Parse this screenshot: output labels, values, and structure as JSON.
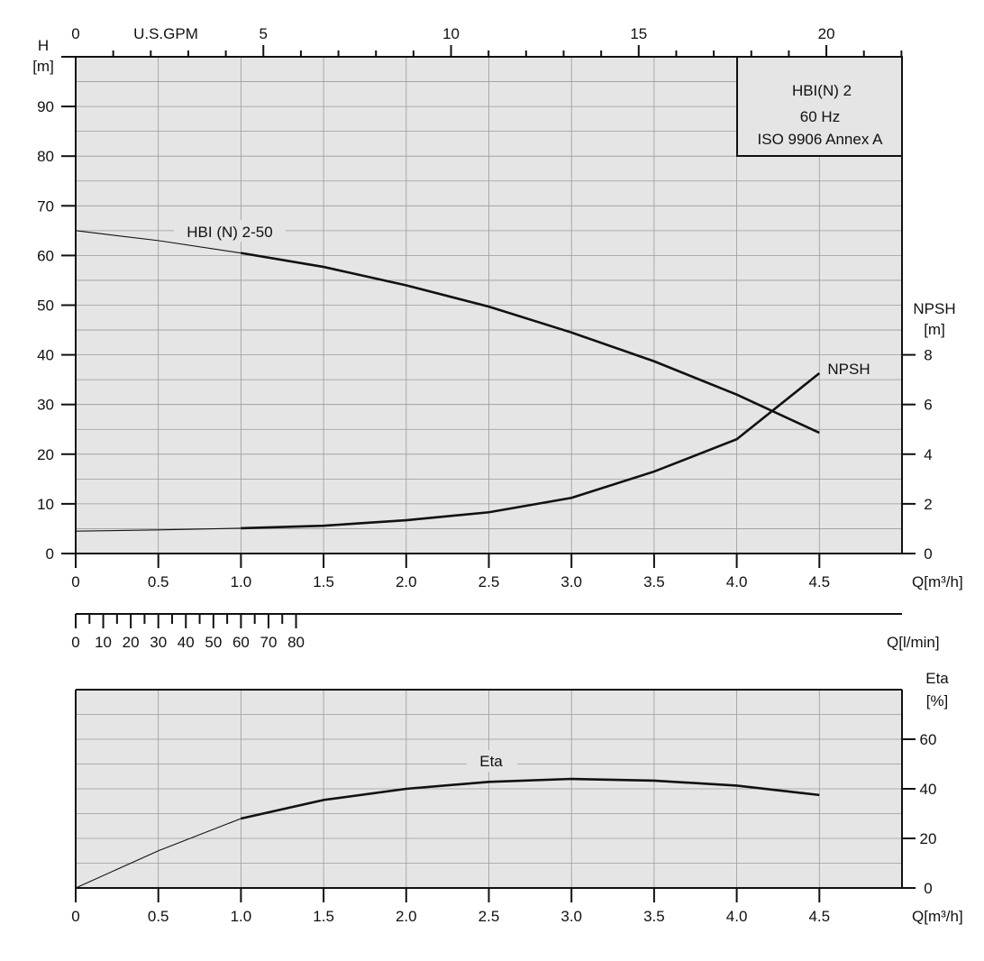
{
  "chart_data": [
    {
      "type": "line",
      "title": "HBI(N) 2",
      "subtitle": [
        "60 Hz",
        "ISO 9906 Annex A"
      ],
      "xlabel": "Q[m³/h]",
      "ylabel": "H [m]",
      "y2label": "NPSH [m]",
      "top_axis_label": "U.S.GPM",
      "xlim": [
        0,
        5
      ],
      "ylim": [
        0,
        100
      ],
      "y2lim": [
        0,
        20
      ],
      "xticks": [
        "0",
        "0.5",
        "1.0",
        "1.5",
        "2.0",
        "2.5",
        "3.0",
        "3.5",
        "4.0",
        "4.5"
      ],
      "yticks": [
        "0",
        "10",
        "20",
        "30",
        "40",
        "50",
        "60",
        "70",
        "80",
        "90"
      ],
      "y2ticks": [
        "0",
        "2",
        "4",
        "6",
        "8"
      ],
      "gpm_ticks": [
        "0",
        "5",
        "10",
        "15",
        "20"
      ],
      "grid": true,
      "series": [
        {
          "name": "HBI (N) 2-50",
          "axis": "H",
          "x": [
            0,
            0.5,
            1.0,
            1.5,
            2.0,
            2.5,
            3.0,
            3.5,
            4.0,
            4.5
          ],
          "y": [
            65,
            63,
            60.5,
            57.7,
            54,
            49.7,
            44.5,
            38.7,
            32,
            24.3
          ]
        },
        {
          "name": "NPSH",
          "axis": "NPSH",
          "x": [
            0,
            0.5,
            1.0,
            1.5,
            2.0,
            2.5,
            3.0,
            3.5,
            4.0,
            4.5
          ],
          "y": [
            0.9,
            0.95,
            1.02,
            1.12,
            1.34,
            1.66,
            2.24,
            3.3,
            4.6,
            7.26
          ]
        }
      ]
    },
    {
      "type": "axis",
      "xlabel": "Q[l/min]",
      "xlim": [
        0,
        83.3
      ],
      "xticks": [
        "0",
        "10",
        "20",
        "30",
        "40",
        "50",
        "60",
        "70",
        "80"
      ]
    },
    {
      "type": "line",
      "xlabel": "Q[m³/h]",
      "ylabel": "Eta [%]",
      "xlim": [
        0,
        5
      ],
      "ylim": [
        0,
        80
      ],
      "xticks": [
        "0",
        "0.5",
        "1.0",
        "1.5",
        "2.0",
        "2.5",
        "3.0",
        "3.5",
        "4.0",
        "4.5"
      ],
      "yticks": [
        "0",
        "20",
        "40",
        "60"
      ],
      "grid": true,
      "series": [
        {
          "name": "Eta",
          "x": [
            0,
            0.5,
            1.0,
            1.5,
            2.0,
            2.5,
            3.0,
            3.5,
            4.0,
            4.5
          ],
          "y": [
            0,
            15,
            28,
            35.5,
            40,
            42.8,
            44,
            43.3,
            41.3,
            37.5
          ]
        }
      ]
    }
  ],
  "labels": {
    "h_axis": [
      "H",
      "[m]"
    ],
    "npsh_axis": [
      "NPSH",
      "[m]"
    ],
    "eta_axis": [
      "Eta",
      "[%]"
    ]
  }
}
